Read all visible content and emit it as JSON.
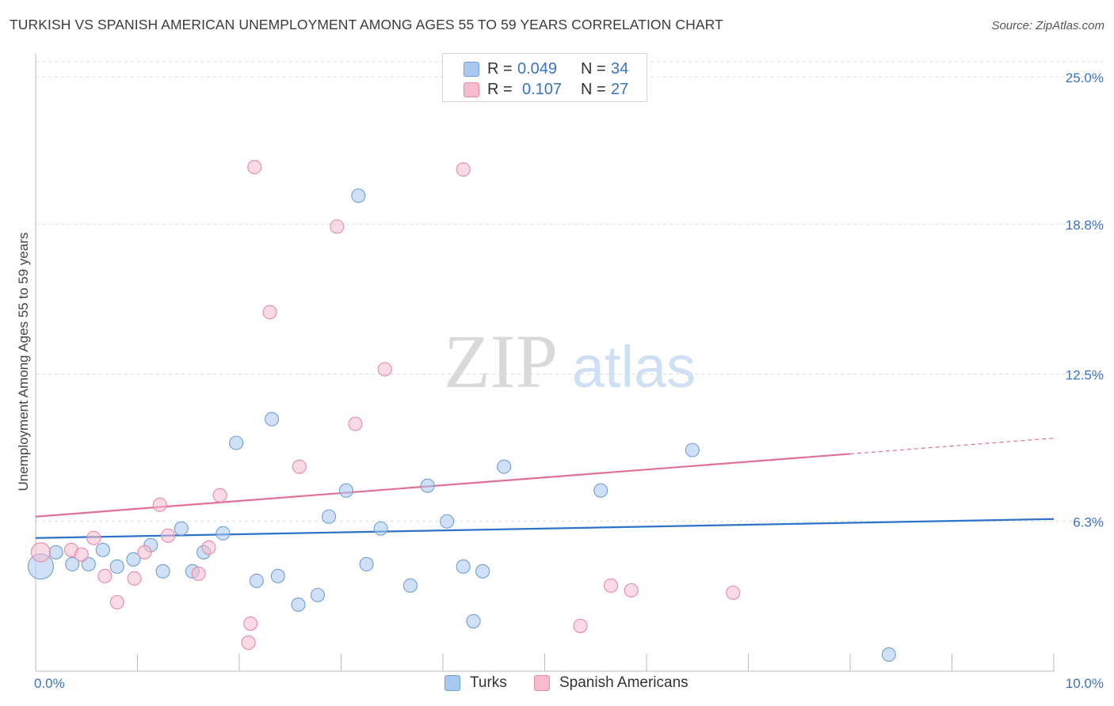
{
  "header": {
    "title": "TURKISH VS SPANISH AMERICAN UNEMPLOYMENT AMONG AGES 55 TO 59 YEARS CORRELATION CHART",
    "source": "Source: ZipAtlas.com"
  },
  "watermark": {
    "zip": "ZIP",
    "atlas": "atlas"
  },
  "legend_top": {
    "rows": [
      {
        "r_label": "R =",
        "r_value": "0.049",
        "n_label": "N =",
        "n_value": "34",
        "color": "#a9c8f0",
        "border": "#6f9fd8",
        "text_color": "#3a73c4"
      },
      {
        "r_label": "R =",
        "r_value": "0.107",
        "n_label": "N =",
        "n_value": "27",
        "color": "#f6bccd",
        "border": "#e68aa6",
        "text_color": "#3a73c4"
      }
    ]
  },
  "legend_bottom": {
    "items": [
      {
        "label": "Turks",
        "color": "#a9c8f0",
        "border": "#6f9fd8"
      },
      {
        "label": "Spanish Americans",
        "color": "#f6bccd",
        "border": "#e68aa6"
      }
    ]
  },
  "chart_data": {
    "type": "scatter",
    "title": "TURKISH VS SPANISH AMERICAN UNEMPLOYMENT AMONG AGES 55 TO 59 YEARS CORRELATION CHART",
    "xlabel": "",
    "ylabel": "Unemployment Among Ages 55 to 59 years",
    "xlim": [
      0,
      10
    ],
    "ylim": [
      0,
      25.5
    ],
    "x_tick_labels": [
      {
        "value": 0,
        "label": "0.0%"
      },
      {
        "value": 10,
        "label": "10.0%"
      }
    ],
    "y_tick_labels": [
      {
        "value": 6.3,
        "label": "6.3%"
      },
      {
        "value": 12.5,
        "label": "12.5%"
      },
      {
        "value": 18.8,
        "label": "18.8%"
      },
      {
        "value": 25.0,
        "label": "25.0%"
      }
    ],
    "series": [
      {
        "name": "Turks",
        "color": "#6f9fd8",
        "fill": "#a9c8f0",
        "line_color": "#2e73c8",
        "trend": {
          "x0": 0,
          "y0": 5.6,
          "x1": 10,
          "y1": 6.4,
          "solid_to": 10
        },
        "points": [
          [
            0.05,
            4.4,
            3
          ],
          [
            0.2,
            5.0,
            1
          ],
          [
            0.36,
            4.5,
            1
          ],
          [
            0.52,
            4.5,
            1
          ],
          [
            0.66,
            5.1,
            1
          ],
          [
            0.8,
            4.4,
            1
          ],
          [
            0.96,
            4.7,
            1
          ],
          [
            1.13,
            5.3,
            1
          ],
          [
            1.25,
            4.2,
            1
          ],
          [
            1.43,
            6.0,
            1
          ],
          [
            1.54,
            4.2,
            1
          ],
          [
            1.65,
            5.0,
            1
          ],
          [
            1.84,
            5.8,
            1
          ],
          [
            1.97,
            9.6,
            1
          ],
          [
            2.17,
            3.8,
            1
          ],
          [
            2.32,
            10.6,
            1
          ],
          [
            2.38,
            4.0,
            1
          ],
          [
            2.58,
            2.8,
            1
          ],
          [
            2.77,
            3.2,
            1
          ],
          [
            2.88,
            6.5,
            1
          ],
          [
            3.05,
            7.6,
            1
          ],
          [
            3.17,
            20.0,
            1
          ],
          [
            3.25,
            4.5,
            1
          ],
          [
            3.39,
            6.0,
            1
          ],
          [
            3.68,
            3.6,
            1
          ],
          [
            3.85,
            7.8,
            1
          ],
          [
            4.04,
            6.3,
            1
          ],
          [
            4.2,
            4.4,
            1
          ],
          [
            4.3,
            2.1,
            1
          ],
          [
            4.39,
            4.2,
            1
          ],
          [
            4.6,
            8.6,
            1
          ],
          [
            5.55,
            7.6,
            1
          ],
          [
            6.45,
            9.3,
            1
          ],
          [
            8.38,
            0.7,
            1
          ]
        ]
      },
      {
        "name": "Spanish Americans",
        "color": "#e68aa6",
        "fill": "#f6bccd",
        "line_color": "#e0709a",
        "trend": {
          "x0": 0,
          "y0": 6.5,
          "x1": 10,
          "y1": 9.8,
          "solid_to": 8.0
        },
        "points": [
          [
            0.05,
            5.0,
            2
          ],
          [
            0.35,
            5.1,
            1
          ],
          [
            0.45,
            4.9,
            1
          ],
          [
            0.57,
            5.6,
            1
          ],
          [
            0.68,
            4.0,
            1
          ],
          [
            0.8,
            2.9,
            1
          ],
          [
            0.97,
            3.9,
            1
          ],
          [
            1.07,
            5.0,
            1
          ],
          [
            1.22,
            7.0,
            1
          ],
          [
            1.3,
            5.7,
            1
          ],
          [
            1.6,
            4.1,
            1
          ],
          [
            1.7,
            5.2,
            1
          ],
          [
            1.81,
            7.4,
            1
          ],
          [
            2.09,
            1.2,
            1
          ],
          [
            2.11,
            2.0,
            1
          ],
          [
            2.15,
            21.2,
            1
          ],
          [
            2.3,
            15.1,
            1
          ],
          [
            2.59,
            8.6,
            1
          ],
          [
            2.96,
            18.7,
            1
          ],
          [
            3.14,
            10.4,
            1
          ],
          [
            3.43,
            12.7,
            1
          ],
          [
            4.2,
            21.1,
            1
          ],
          [
            5.35,
            1.9,
            1
          ],
          [
            5.65,
            3.6,
            1
          ],
          [
            5.85,
            3.4,
            1
          ],
          [
            6.85,
            3.3,
            1
          ]
        ]
      }
    ]
  }
}
